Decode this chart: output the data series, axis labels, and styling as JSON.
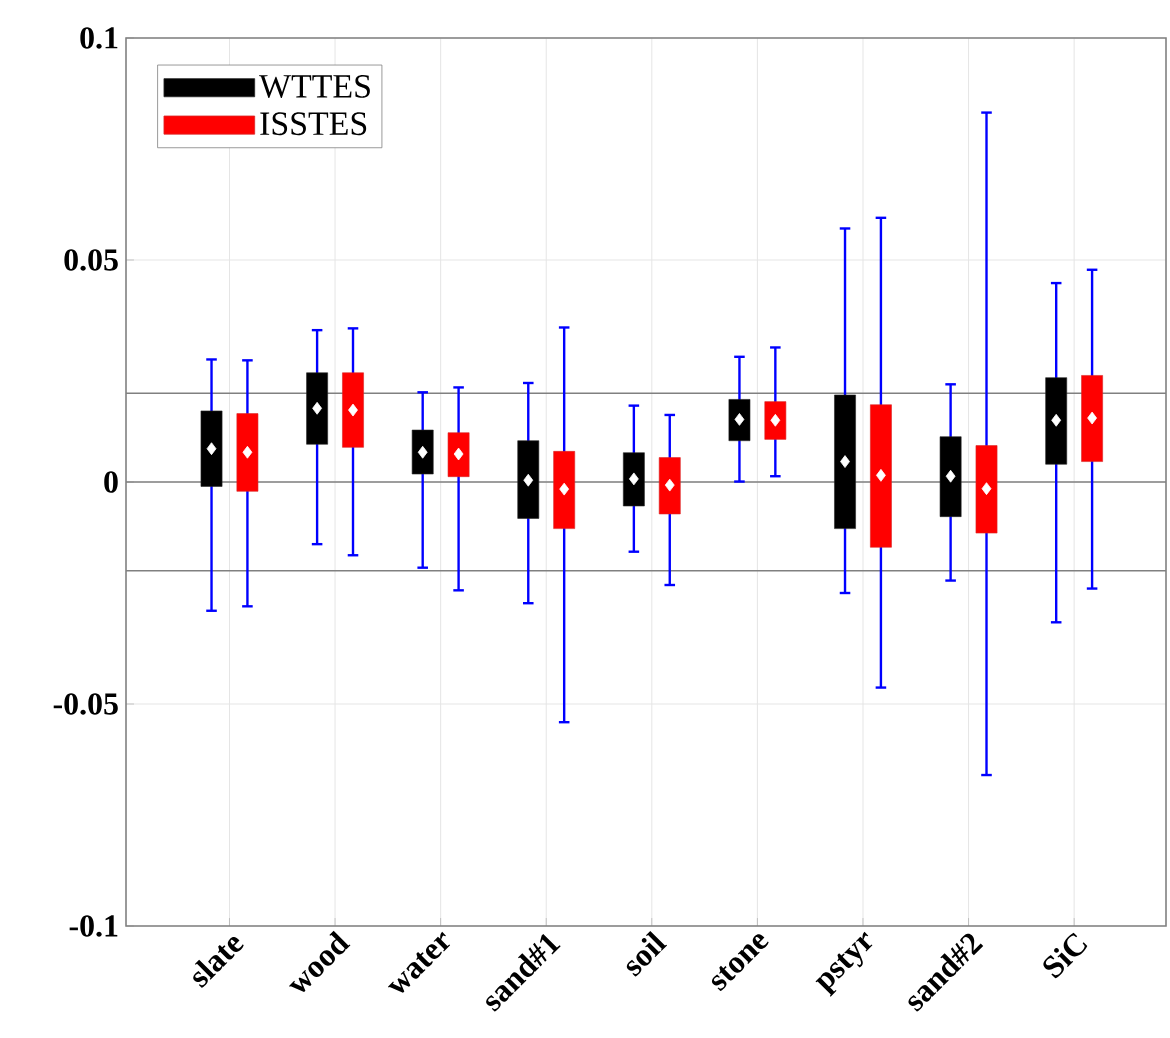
{
  "chart_data": {
    "type": "box",
    "categories": [
      "slate",
      "wood",
      "water",
      "sand#1",
      "soil",
      "stone",
      "pstyr",
      "sand#2",
      "SiC"
    ],
    "ylim": [
      -0.1,
      0.1
    ],
    "yticks": [
      -0.1,
      -0.05,
      0,
      0.05,
      0.1
    ],
    "grid": true,
    "legend": "top left",
    "ref_lines": [
      {
        "axis": "y",
        "value": 0.02,
        "color": "#808080"
      },
      {
        "axis": "y",
        "value": 0,
        "color": "#808080"
      },
      {
        "axis": "y",
        "value": -0.02,
        "color": "#808080"
      }
    ],
    "series": [
      {
        "name": "WTTES",
        "color": "#000000",
        "boxes": [
          {
            "low": -0.029,
            "q1": -0.001,
            "median": 0.0075,
            "q3": 0.016,
            "high": 0.0276
          },
          {
            "low": -0.014,
            "q1": 0.0085,
            "median": 0.0166,
            "q3": 0.0246,
            "high": 0.0342
          },
          {
            "low": -0.0193,
            "q1": 0.0018,
            "median": 0.0067,
            "q3": 0.0117,
            "high": 0.0202
          },
          {
            "low": -0.0273,
            "q1": -0.0082,
            "median": 0.0004,
            "q3": 0.0093,
            "high": 0.0223
          },
          {
            "low": -0.0157,
            "q1": -0.0054,
            "median": 0.0007,
            "q3": 0.0066,
            "high": 0.0172
          },
          {
            "low": 0.0001,
            "q1": 0.0093,
            "median": 0.0141,
            "q3": 0.0186,
            "high": 0.0282
          },
          {
            "low": -0.025,
            "q1": -0.0105,
            "median": 0.0046,
            "q3": 0.0196,
            "high": 0.0571
          },
          {
            "low": -0.0222,
            "q1": -0.0078,
            "median": 0.0013,
            "q3": 0.0102,
            "high": 0.022
          },
          {
            "low": -0.0316,
            "q1": 0.004,
            "median": 0.0139,
            "q3": 0.0235,
            "high": 0.0448
          }
        ]
      },
      {
        "name": "ISSTES",
        "color": "#ff0000",
        "boxes": [
          {
            "low": -0.028,
            "q1": -0.0021,
            "median": 0.0067,
            "q3": 0.0154,
            "high": 0.0274
          },
          {
            "low": -0.0165,
            "q1": 0.0078,
            "median": 0.0162,
            "q3": 0.0246,
            "high": 0.0346
          },
          {
            "low": -0.0244,
            "q1": 0.0012,
            "median": 0.0063,
            "q3": 0.0111,
            "high": 0.0213
          },
          {
            "low": -0.0541,
            "q1": -0.0105,
            "median": -0.0016,
            "q3": 0.0069,
            "high": 0.0348
          },
          {
            "low": -0.0232,
            "q1": -0.0072,
            "median": -0.0007,
            "q3": 0.0055,
            "high": 0.0151
          },
          {
            "low": 0.0013,
            "q1": 0.0096,
            "median": 0.0139,
            "q3": 0.0181,
            "high": 0.0303
          },
          {
            "low": -0.0463,
            "q1": -0.0147,
            "median": 0.0015,
            "q3": 0.0174,
            "high": 0.0595
          },
          {
            "low": -0.066,
            "q1": -0.0115,
            "median": -0.0015,
            "q3": 0.0082,
            "high": 0.0832
          },
          {
            "low": -0.024,
            "q1": 0.0046,
            "median": 0.0144,
            "q3": 0.024,
            "high": 0.0478
          }
        ]
      }
    ]
  }
}
